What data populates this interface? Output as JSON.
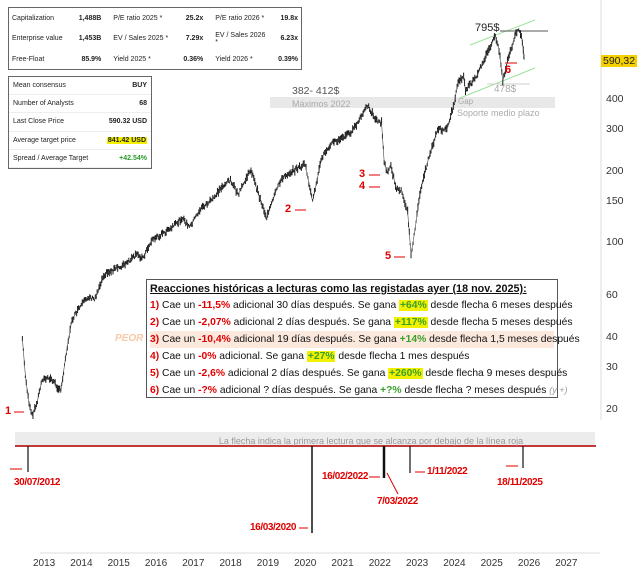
{
  "fundamentals": {
    "rows": [
      {
        "l1": "Capitalization",
        "v1": "1,488B",
        "l2": "P/E ratio 2025 *",
        "v2": "25.2x",
        "l3": "P/E ratio 2026 *",
        "v3": "19.8x"
      },
      {
        "l1": "Enterprise value",
        "v1": "1,453B",
        "l2": "EV / Sales 2025 *",
        "v2": "7.29x",
        "l3": "EV / Sales 2026 *",
        "v3": "6.23x"
      },
      {
        "l1": "Free-Float",
        "v1": "85.9%",
        "l2": "Yield 2025 *",
        "v2": "0.36%",
        "l3": "Yield 2026 *",
        "v3": "0.39%"
      }
    ]
  },
  "consensus": {
    "rows": [
      {
        "label": "Mean consensus",
        "value": "BUY"
      },
      {
        "label": "Number of Analysts",
        "value": "68"
      },
      {
        "label": "Last Close Price",
        "value": "590.32 USD"
      },
      {
        "label": "Average target price",
        "value": "841.42 USD"
      },
      {
        "label": "Spread / Average Target",
        "value": "+42.54%"
      }
    ]
  },
  "reactions": {
    "title": "Reacciones históricas a lecturas como las registadas ayer (18 nov. 2025):",
    "side_label": "PEOR",
    "rows": [
      {
        "n": "1)",
        "a": " Cae un ",
        "drop": "-11,5%",
        "b": " adicional 30 días después. Se gana ",
        "gain": "+64%",
        "c": " desde flecha 6 meses después",
        "hl": true
      },
      {
        "n": "2)",
        "a": " Cae un ",
        "drop": "-2,07%",
        "b": " adicional 2 días después. Se gana ",
        "gain": "+117%",
        "c": " desde flecha 5 meses después",
        "hl": true
      },
      {
        "n": "3)",
        "a": " Cae un ",
        "drop": "-10,4%",
        "b": " adicional 19 días después. Se gana ",
        "gain": "+14%",
        "c": " desde flecha 1,5 meses después",
        "hl": false
      },
      {
        "n": "4)",
        "a": " Cae un ",
        "drop": "-0%",
        "b": " adicional. Se gana ",
        "gain": "+27%",
        "c": " desde flecha 1 mes después",
        "hl": true
      },
      {
        "n": "5)",
        "a": " Cae un ",
        "drop": "-2,6%",
        "b": " adicional 2 días después. Se gana ",
        "gain": "+260%",
        "c": " desde flecha 9 meses después",
        "hl": true
      },
      {
        "n": "6)",
        "a": " Cae un ",
        "drop": "-?%",
        "b": " adicional ? días después. Se gana ",
        "gain": "+?%",
        "c": " desde flecha ? meses después ",
        "extra": "(y +)",
        "hl": false
      }
    ]
  },
  "annotations": {
    "max2022_value": "382- 412$",
    "max2022_label": "Máximos 2022",
    "gap_label": "Gap",
    "support_label": "Soporte medio plazo",
    "high_label": "795$",
    "low_label": "478$",
    "last_price": "590,32",
    "red_line_note": "La flecha indica la primera lectura que se alcanza por debajo de la línea roja",
    "markers": [
      "1",
      "2",
      "3",
      "4",
      "5",
      "6"
    ],
    "dates": [
      "30/07/2012",
      "16/03/2020",
      "16/02/2022",
      "7/03/2022",
      "1/11/2022",
      "18/11/2025"
    ]
  },
  "colors": {
    "up": "#1a1a1a",
    "signal": "#e00000",
    "channel": "#9be39b",
    "highlight": "#f4f000",
    "gain": "#3aa02a"
  },
  "chart_data": {
    "type": "line",
    "title": "",
    "xlabel": "",
    "ylabel": "",
    "yscale": "log",
    "ylim": [
      17,
      900
    ],
    "xlim": [
      2012.4,
      2027.8
    ],
    "yticks": [
      400,
      300,
      200,
      150,
      100,
      60,
      40,
      30,
      20
    ],
    "xticks": [
      2013,
      2014,
      2015,
      2016,
      2017,
      2018,
      2019,
      2020,
      2021,
      2022,
      2023,
      2024,
      2025,
      2026,
      2027
    ],
    "series": [
      {
        "name": "Price",
        "points": [
          [
            2012.42,
            40
          ],
          [
            2012.5,
            28
          ],
          [
            2012.6,
            21
          ],
          [
            2012.68,
            19
          ],
          [
            2012.8,
            21
          ],
          [
            2012.95,
            27
          ],
          [
            2013.2,
            27
          ],
          [
            2013.45,
            24
          ],
          [
            2013.6,
            35
          ],
          [
            2013.75,
            48
          ],
          [
            2014.0,
            55
          ],
          [
            2014.2,
            60
          ],
          [
            2014.35,
            58
          ],
          [
            2014.6,
            74
          ],
          [
            2014.9,
            78
          ],
          [
            2015.2,
            82
          ],
          [
            2015.5,
            90
          ],
          [
            2015.65,
            87
          ],
          [
            2015.9,
            104
          ],
          [
            2016.1,
            108
          ],
          [
            2016.4,
            115
          ],
          [
            2016.7,
            128
          ],
          [
            2016.9,
            117
          ],
          [
            2017.2,
            140
          ],
          [
            2017.5,
            152
          ],
          [
            2017.8,
            175
          ],
          [
            2018.0,
            185
          ],
          [
            2018.2,
            160
          ],
          [
            2018.55,
            205
          ],
          [
            2018.7,
            170
          ],
          [
            2018.97,
            128
          ],
          [
            2019.3,
            180
          ],
          [
            2019.5,
            195
          ],
          [
            2020.0,
            215
          ],
          [
            2020.2,
            150
          ],
          [
            2020.45,
            230
          ],
          [
            2020.7,
            265
          ],
          [
            2020.9,
            270
          ],
          [
            2021.3,
            300
          ],
          [
            2021.68,
            380
          ],
          [
            2021.9,
            330
          ],
          [
            2022.05,
            320
          ],
          [
            2022.12,
            220
          ],
          [
            2022.2,
            200
          ],
          [
            2022.3,
            210
          ],
          [
            2022.45,
            170
          ],
          [
            2022.6,
            165
          ],
          [
            2022.75,
            135
          ],
          [
            2022.84,
            90
          ],
          [
            2022.95,
            115
          ],
          [
            2023.1,
            170
          ],
          [
            2023.35,
            240
          ],
          [
            2023.55,
            300
          ],
          [
            2023.8,
            300
          ],
          [
            2024.0,
            390
          ],
          [
            2024.1,
            475
          ],
          [
            2024.25,
            500
          ],
          [
            2024.3,
            440
          ],
          [
            2024.6,
            500
          ],
          [
            2024.75,
            570
          ],
          [
            2025.1,
            740
          ],
          [
            2025.2,
            650
          ],
          [
            2025.3,
            480
          ],
          [
            2025.45,
            600
          ],
          [
            2025.6,
            720
          ],
          [
            2025.7,
            790
          ],
          [
            2025.8,
            750
          ],
          [
            2025.85,
            650
          ],
          [
            2025.88,
            590
          ]
        ]
      }
    ],
    "reference_levels": {
      "max_2022": [
        382,
        412
      ],
      "high": 795,
      "support_low": 478,
      "last": 590.32
    },
    "signals": [
      {
        "label": "1",
        "date": "30/07/2012",
        "x": 2012.58,
        "price": 21
      },
      {
        "label": "2",
        "date": "16/03/2020",
        "x": 2020.2,
        "price": 150
      },
      {
        "label": "3",
        "date": "16/02/2022",
        "x": 2022.13,
        "price": 220
      },
      {
        "label": "4",
        "date": "7/03/2022",
        "x": 2022.18,
        "price": 200
      },
      {
        "label": "5",
        "date": "1/11/2022",
        "x": 2022.84,
        "price": 90
      },
      {
        "label": "6",
        "date": "18/11/2025",
        "x": 2025.88,
        "price": 590
      }
    ]
  }
}
